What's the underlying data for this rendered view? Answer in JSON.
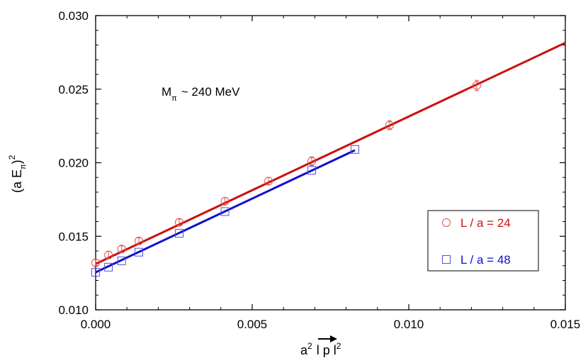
{
  "chart_data": {
    "type": "scatter",
    "x_range": [
      0.0,
      0.015
    ],
    "y_range": [
      0.01,
      0.03
    ],
    "x_ticks": [
      "0.000",
      "0.005",
      "0.010",
      "0.015"
    ],
    "y_ticks": [
      "0.010",
      "0.015",
      "0.020",
      "0.025",
      "0.030"
    ],
    "xlabel": {
      "base": "a",
      "sup1": "2",
      "mid": "l p l",
      "sup2": "2"
    },
    "ylabel": {
      "base": "(a E",
      "sub": "π",
      "close": ")",
      "sup": "2"
    },
    "annotation": {
      "main": "M",
      "sub": "π",
      "rest": "~ 240 MeV"
    },
    "grid": false,
    "legend_position": "right",
    "series": [
      {
        "name": "L / a = 24",
        "marker": "circle",
        "color": "#cc1010",
        "x": [
          0.0,
          0.00041,
          0.00083,
          0.00138,
          0.00267,
          0.00413,
          0.00552,
          0.0069,
          0.00939,
          0.01217
        ],
        "y": [
          0.0132,
          0.01372,
          0.01413,
          0.01468,
          0.01595,
          0.01738,
          0.01875,
          0.0201,
          0.02255,
          0.02525
        ],
        "err": [
          0.00022,
          0.00025,
          0.00022,
          0.00022,
          0.00022,
          0.00025,
          0.00025,
          0.0003,
          0.0003,
          0.00035
        ],
        "fit": {
          "x": [
            0.0,
            0.015
          ],
          "y": [
            0.01312,
            0.02815
          ]
        }
      },
      {
        "name": "L / a = 48",
        "marker": "square",
        "color": "#1010cc",
        "x": [
          0.0,
          0.00041,
          0.00083,
          0.00138,
          0.00267,
          0.00413,
          0.0069,
          0.00828
        ],
        "y": [
          0.01255,
          0.0129,
          0.01333,
          0.01392,
          0.0152,
          0.01668,
          0.01948,
          0.0209
        ],
        "err": [
          0.0,
          0.0,
          0.0,
          0.0,
          0.0,
          0.0,
          0.0,
          0.0
        ],
        "fit": {
          "x": [
            0.0,
            0.00828
          ],
          "y": [
            0.01255,
            0.02085
          ]
        }
      }
    ]
  }
}
